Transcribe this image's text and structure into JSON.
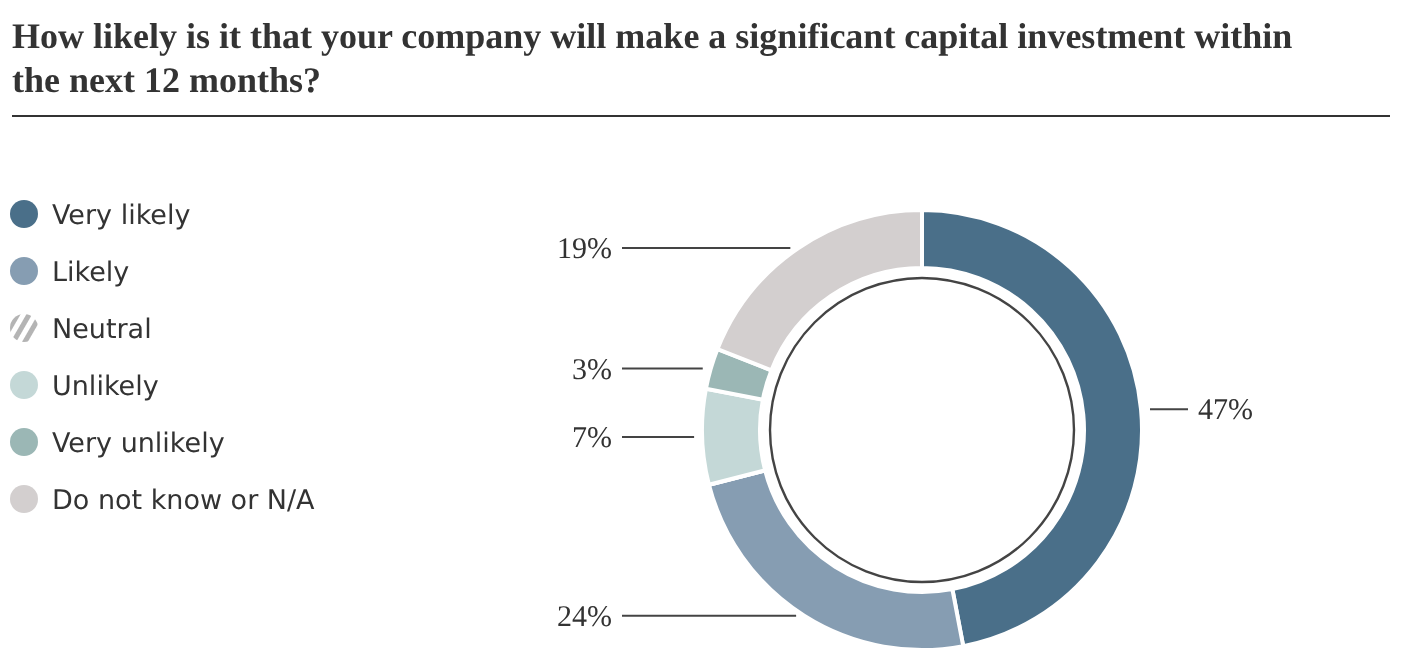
{
  "chart_data": {
    "type": "donut",
    "title": "How likely is it that your company will make a significant capital investment within the next 12 months?",
    "categories": [
      "Very likely",
      "Likely",
      "Neutral",
      "Unlikely",
      "Very unlikely",
      "Do not know or N/A"
    ],
    "values": [
      47,
      24,
      0,
      7,
      3,
      19
    ],
    "value_labels": [
      "47%",
      "24%",
      null,
      "7%",
      "3%",
      "19%"
    ],
    "colors": [
      "#4a6f89",
      "#869db2",
      "#b4b4b4",
      "#c4d8d7",
      "#9bb7b5",
      "#d3cfcf"
    ],
    "legend": "left"
  }
}
